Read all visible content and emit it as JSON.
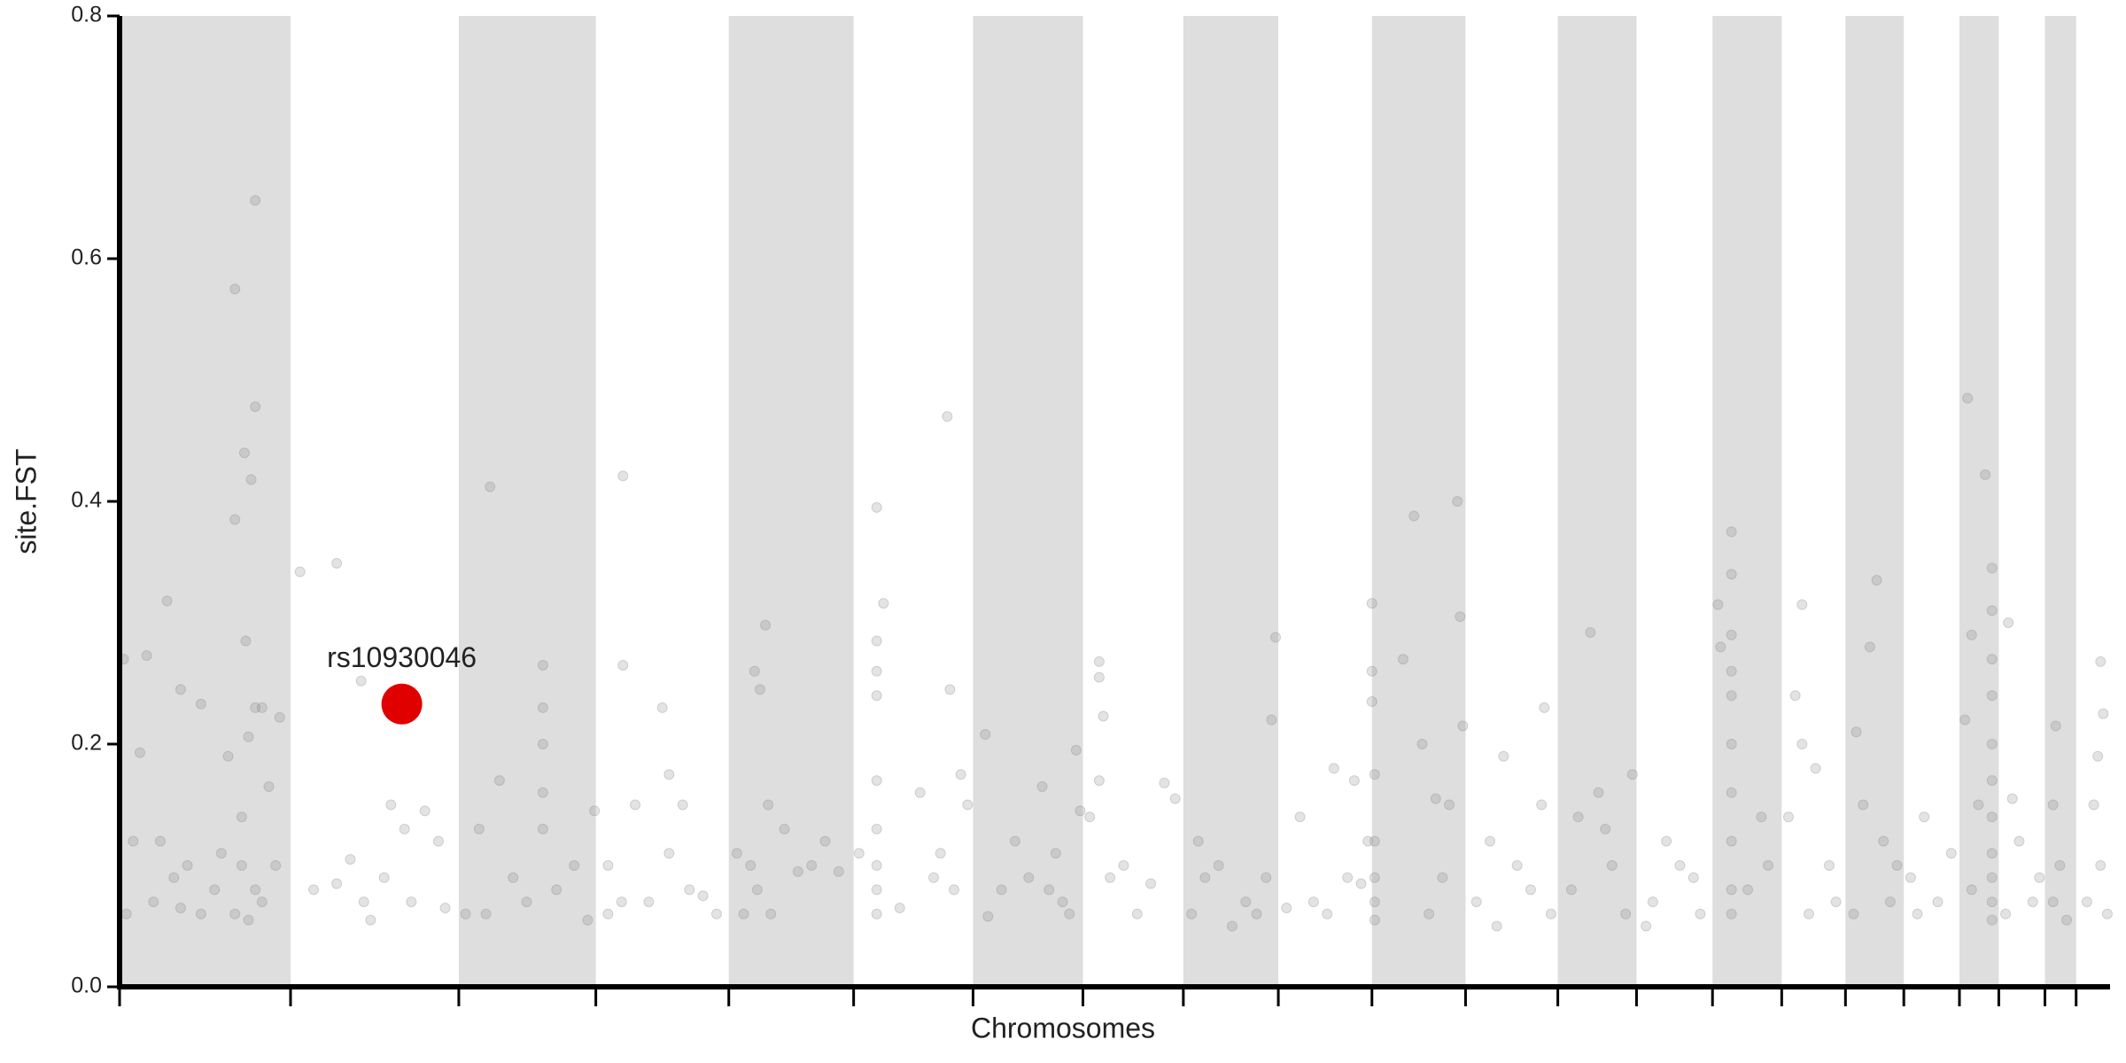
{
  "chart_data": {
    "type": "scatter",
    "x_label": "Chromosomes",
    "y_label": "site.FST",
    "xlim": [
      0,
      1467
    ],
    "ylim": [
      0,
      0.8
    ],
    "yticks": [
      {
        "value": 0,
        "label": "0.0"
      },
      0.2,
      0.4,
      0.6,
      0.8
    ],
    "xticks": [
      0,
      126,
      250,
      351,
      449,
      541,
      629,
      710,
      784,
      854,
      923,
      992,
      1060,
      1118,
      1174,
      1225,
      1272,
      1315,
      1356,
      1385,
      1419,
      1442
    ],
    "bands": [
      [
        0,
        126
      ],
      [
        250,
        351
      ],
      [
        449,
        541
      ],
      [
        629,
        710
      ],
      [
        784,
        854
      ],
      [
        923,
        992
      ],
      [
        1060,
        1118
      ],
      [
        1174,
        1225
      ],
      [
        1272,
        1315
      ],
      [
        1356,
        1385
      ],
      [
        1419,
        1442
      ]
    ],
    "band_color": "#dedede",
    "point_color": "#808080",
    "x": [
      85,
      93,
      100,
      100,
      92,
      85,
      97,
      35,
      3,
      20,
      45,
      60,
      15,
      80,
      100,
      105,
      95,
      118,
      110,
      90,
      10,
      30,
      40,
      50,
      70,
      90,
      100,
      105,
      5,
      25,
      60,
      85,
      95,
      45,
      115,
      75,
      133,
      160,
      178,
      143,
      160,
      180,
      200,
      210,
      225,
      235,
      185,
      195,
      240,
      170,
      215,
      273,
      312,
      312,
      312,
      312,
      312,
      265,
      280,
      290,
      255,
      300,
      335,
      345,
      270,
      322,
      350,
      371,
      371,
      400,
      405,
      380,
      360,
      370,
      390,
      405,
      420,
      430,
      440,
      415,
      360,
      476,
      468,
      472,
      455,
      465,
      470,
      480,
      490,
      500,
      520,
      530,
      460,
      478,
      510,
      558,
      563,
      558,
      558,
      558,
      558,
      558,
      558,
      558,
      558,
      545,
      575,
      600,
      610,
      612,
      620,
      625,
      590,
      605,
      615,
      638,
      660,
      650,
      670,
      680,
      690,
      700,
      708,
      640,
      685,
      695,
      705,
      722,
      722,
      725,
      722,
      730,
      750,
      770,
      778,
      740,
      715,
      760,
      795,
      800,
      790,
      810,
      820,
      830,
      845,
      849,
      852,
      838,
      870,
      880,
      895,
      910,
      920,
      860,
      890,
      905,
      915,
      923,
      923,
      923,
      925,
      925,
      925,
      925,
      925,
      946,
      954,
      960,
      970,
      980,
      986,
      988,
      975,
      965,
      990,
      1020,
      1050,
      1048,
      1010,
      1030,
      1000,
      1040,
      1055,
      1015,
      1084,
      1075,
      1090,
      1095,
      1070,
      1100,
      1110,
      1115,
      1130,
      1140,
      1150,
      1160,
      1165,
      1125,
      1188,
      1188,
      1188,
      1188,
      1188,
      1188,
      1188,
      1188,
      1188,
      1188,
      1178,
      1180,
      1210,
      1215,
      1200,
      1240,
      1235,
      1240,
      1250,
      1230,
      1260,
      1265,
      1245,
      1280,
      1295,
      1290,
      1285,
      1300,
      1305,
      1310,
      1278,
      1320,
      1330,
      1340,
      1350,
      1325,
      1362,
      1375,
      1380,
      1380,
      1380,
      1380,
      1380,
      1380,
      1380,
      1380,
      1380,
      1380,
      1380,
      1365,
      1360,
      1370,
      1365,
      1392,
      1395,
      1400,
      1410,
      1390,
      1415,
      1427,
      1425,
      1430,
      1425,
      1435,
      1460,
      1462,
      1458,
      1455,
      1460,
      1450,
      1465
    ],
    "values": [
      0.575,
      0.285,
      0.648,
      0.478,
      0.44,
      0.385,
      0.418,
      0.318,
      0.27,
      0.273,
      0.245,
      0.233,
      0.193,
      0.19,
      0.23,
      0.23,
      0.206,
      0.222,
      0.165,
      0.14,
      0.12,
      0.12,
      0.09,
      0.1,
      0.08,
      0.1,
      0.08,
      0.07,
      0.06,
      0.07,
      0.06,
      0.06,
      0.055,
      0.065,
      0.1,
      0.11,
      0.342,
      0.349,
      0.252,
      0.08,
      0.085,
      0.07,
      0.15,
      0.13,
      0.145,
      0.12,
      0.055,
      0.09,
      0.065,
      0.105,
      0.07,
      0.412,
      0.265,
      0.23,
      0.2,
      0.16,
      0.13,
      0.13,
      0.17,
      0.09,
      0.06,
      0.07,
      0.1,
      0.055,
      0.06,
      0.08,
      0.145,
      0.421,
      0.265,
      0.23,
      0.175,
      0.15,
      0.1,
      0.07,
      0.07,
      0.11,
      0.08,
      0.075,
      0.06,
      0.15,
      0.06,
      0.298,
      0.26,
      0.245,
      0.11,
      0.1,
      0.08,
      0.06,
      0.13,
      0.095,
      0.12,
      0.095,
      0.06,
      0.15,
      0.1,
      0.395,
      0.316,
      0.285,
      0.26,
      0.24,
      0.17,
      0.13,
      0.1,
      0.08,
      0.06,
      0.11,
      0.065,
      0.09,
      0.47,
      0.245,
      0.175,
      0.15,
      0.16,
      0.11,
      0.08,
      0.208,
      0.12,
      0.08,
      0.09,
      0.165,
      0.11,
      0.06,
      0.145,
      0.058,
      0.08,
      0.07,
      0.195,
      0.268,
      0.255,
      0.223,
      0.17,
      0.09,
      0.06,
      0.168,
      0.155,
      0.1,
      0.14,
      0.085,
      0.12,
      0.09,
      0.06,
      0.1,
      0.05,
      0.07,
      0.09,
      0.22,
      0.288,
      0.06,
      0.14,
      0.07,
      0.18,
      0.17,
      0.12,
      0.065,
      0.06,
      0.09,
      0.085,
      0.316,
      0.26,
      0.235,
      0.175,
      0.12,
      0.09,
      0.07,
      0.055,
      0.27,
      0.388,
      0.2,
      0.155,
      0.15,
      0.4,
      0.305,
      0.09,
      0.06,
      0.215,
      0.19,
      0.23,
      0.15,
      0.12,
      0.1,
      0.07,
      0.08,
      0.06,
      0.05,
      0.292,
      0.14,
      0.16,
      0.13,
      0.08,
      0.1,
      0.06,
      0.175,
      0.07,
      0.12,
      0.1,
      0.09,
      0.06,
      0.05,
      0.375,
      0.34,
      0.29,
      0.26,
      0.24,
      0.2,
      0.16,
      0.12,
      0.08,
      0.06,
      0.315,
      0.28,
      0.14,
      0.1,
      0.08,
      0.315,
      0.24,
      0.2,
      0.18,
      0.14,
      0.1,
      0.07,
      0.06,
      0.21,
      0.335,
      0.28,
      0.15,
      0.12,
      0.07,
      0.1,
      0.06,
      0.09,
      0.14,
      0.07,
      0.11,
      0.06,
      0.485,
      0.422,
      0.345,
      0.31,
      0.27,
      0.24,
      0.2,
      0.17,
      0.14,
      0.11,
      0.09,
      0.07,
      0.055,
      0.29,
      0.22,
      0.15,
      0.08,
      0.3,
      0.155,
      0.12,
      0.07,
      0.06,
      0.09,
      0.215,
      0.15,
      0.1,
      0.07,
      0.055,
      0.268,
      0.225,
      0.19,
      0.15,
      0.1,
      0.07,
      0.06
    ],
    "highlight": {
      "label": "rs10930046",
      "x": 208,
      "value": 0.233,
      "color": "#e00000"
    }
  }
}
